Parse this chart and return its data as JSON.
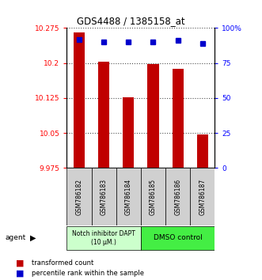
{
  "title": "GDS4488 / 1385158_at",
  "samples": [
    "GSM786182",
    "GSM786183",
    "GSM786184",
    "GSM786185",
    "GSM786186",
    "GSM786187"
  ],
  "bar_values": [
    10.265,
    10.202,
    10.127,
    10.198,
    10.187,
    10.047
  ],
  "percentile_values": [
    92,
    90,
    90,
    90,
    91,
    89
  ],
  "ylim_left": [
    9.975,
    10.275
  ],
  "ylim_right": [
    0,
    100
  ],
  "yticks_left": [
    9.975,
    10.05,
    10.125,
    10.2,
    10.275
  ],
  "ytick_left_labels": [
    "9.975",
    "10.05",
    "10.125",
    "10.2",
    "10.275"
  ],
  "yticks_right": [
    0,
    25,
    50,
    75,
    100
  ],
  "ytick_right_labels": [
    "0",
    "25",
    "50",
    "75",
    "100%"
  ],
  "bar_color": "#c00000",
  "dot_color": "#0000cc",
  "group1_label": "Notch inhibitor DAPT\n(10 μM.)",
  "group2_label": "DMSO control",
  "group1_color": "#ccffcc",
  "group2_color": "#44ee44",
  "group1_samples": [
    0,
    1,
    2
  ],
  "group2_samples": [
    3,
    4,
    5
  ],
  "legend_bar_label": "transformed count",
  "legend_dot_label": "percentile rank within the sample",
  "agent_label": "agent"
}
